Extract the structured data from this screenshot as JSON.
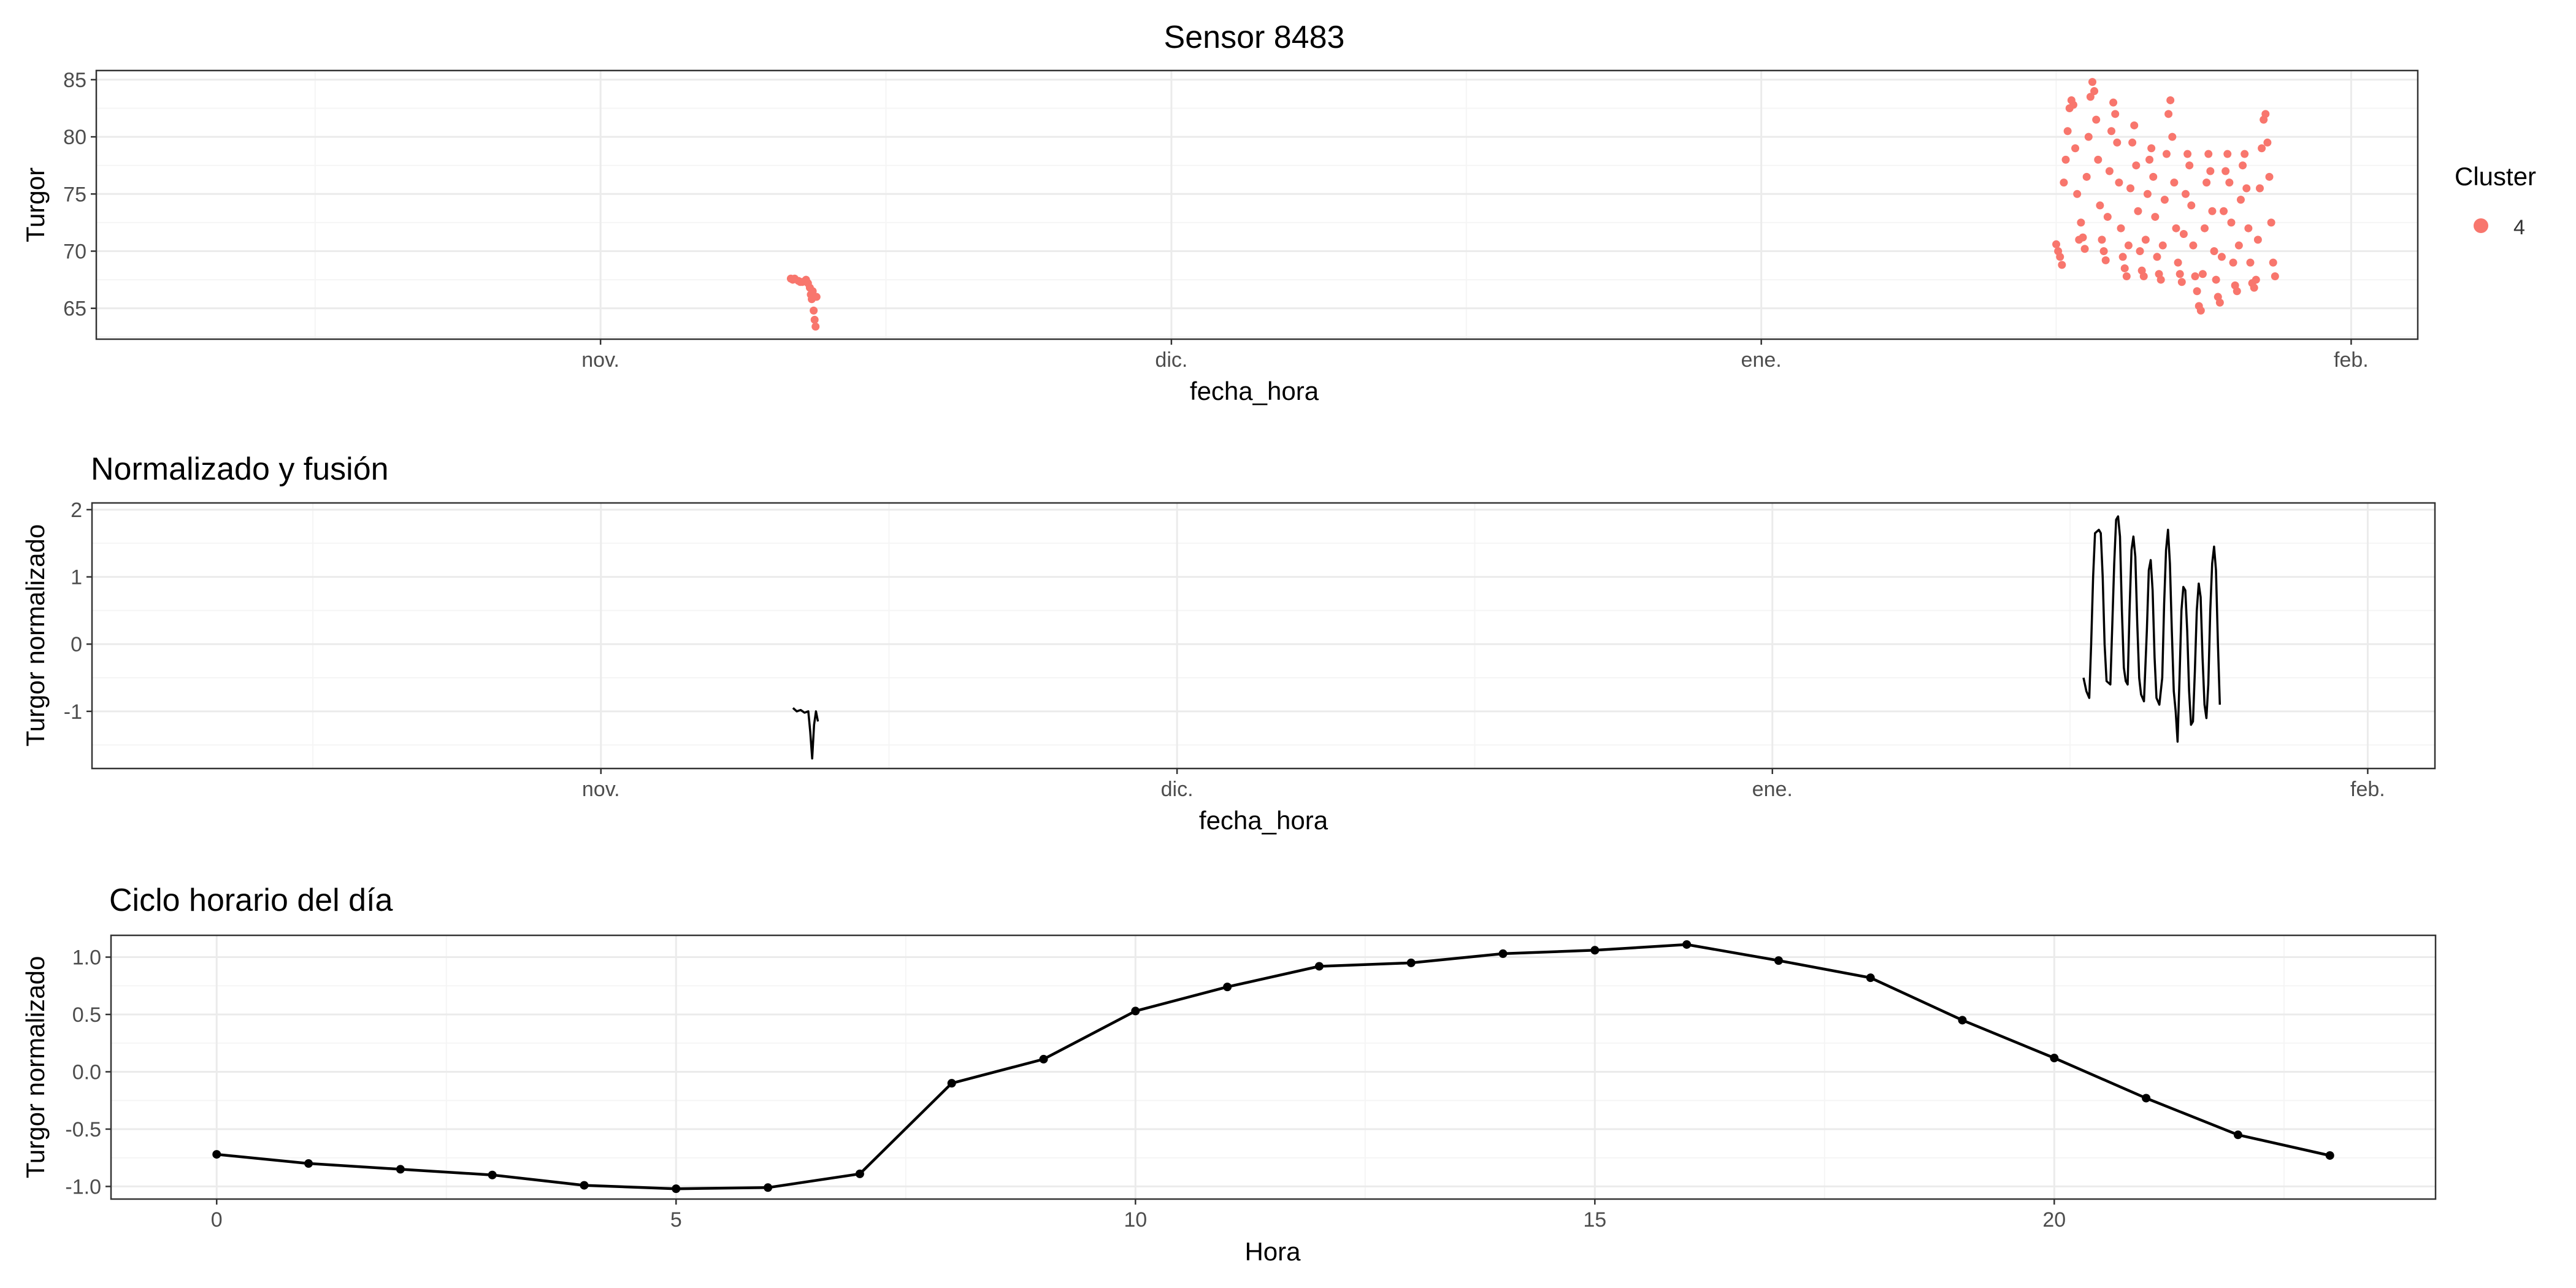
{
  "colors": {
    "cluster4": "#F8766D",
    "line": "#000000",
    "grid_major": "#EBEBEB",
    "grid_minor": "#F5F5F5",
    "panel_border": "#333333"
  },
  "chart_data": [
    {
      "type": "scatter",
      "title": "Sensor 8483",
      "xlabel": "fecha_hora",
      "ylabel": "Turgor",
      "xlim": [
        -26.5,
        95.5
      ],
      "ylim": [
        62.3,
        85.8
      ],
      "x_axis": {
        "unit": "days relative to 2023-11-01",
        "ticks": [
          {
            "label": "nov.",
            "value": 0
          },
          {
            "label": "dic.",
            "value": 30
          },
          {
            "label": "ene.",
            "value": 61
          },
          {
            "label": "feb.",
            "value": 92
          }
        ],
        "minor": [
          -15,
          15,
          45.5,
          76.5
        ]
      },
      "y_ticks": [
        65,
        70,
        75,
        80,
        85
      ],
      "legend": {
        "title": "Cluster",
        "position": "right",
        "entries": [
          {
            "label": "4",
            "color": "#F8766D"
          }
        ]
      },
      "series": [
        {
          "name": "4",
          "color": "#F8766D",
          "points": [
            [
              10.0,
              67.6
            ],
            [
              10.1,
              67.5
            ],
            [
              10.2,
              67.6
            ],
            [
              10.4,
              67.4
            ],
            [
              10.5,
              67.3
            ],
            [
              10.6,
              67.3
            ],
            [
              10.8,
              67.5
            ],
            [
              10.9,
              67.2
            ],
            [
              11.0,
              66.8
            ],
            [
              11.05,
              66.2
            ],
            [
              11.1,
              65.8
            ],
            [
              11.15,
              66.5
            ],
            [
              11.2,
              64.8
            ],
            [
              11.25,
              64.0
            ],
            [
              11.3,
              63.4
            ],
            [
              11.35,
              66.0
            ],
            [
              76.5,
              70.6
            ],
            [
              76.6,
              70.0
            ],
            [
              76.7,
              69.5
            ],
            [
              76.8,
              68.8
            ],
            [
              76.9,
              76.0
            ],
            [
              77.0,
              78.0
            ],
            [
              77.1,
              80.5
            ],
            [
              77.2,
              82.5
            ],
            [
              77.3,
              83.2
            ],
            [
              77.4,
              82.8
            ],
            [
              77.5,
              79.0
            ],
            [
              77.6,
              75.0
            ],
            [
              77.7,
              71.0
            ],
            [
              77.8,
              72.5
            ],
            [
              77.9,
              71.2
            ],
            [
              78.0,
              70.2
            ],
            [
              78.1,
              76.5
            ],
            [
              78.2,
              80.0
            ],
            [
              78.3,
              83.5
            ],
            [
              78.4,
              84.8
            ],
            [
              78.5,
              84.0
            ],
            [
              78.6,
              81.5
            ],
            [
              78.7,
              78.0
            ],
            [
              78.8,
              74.0
            ],
            [
              78.9,
              71.0
            ],
            [
              79.0,
              70.0
            ],
            [
              79.1,
              69.2
            ],
            [
              79.2,
              73.0
            ],
            [
              79.3,
              77.0
            ],
            [
              79.4,
              80.5
            ],
            [
              79.5,
              83.0
            ],
            [
              79.6,
              82.0
            ],
            [
              79.7,
              79.5
            ],
            [
              79.8,
              76.0
            ],
            [
              79.9,
              72.0
            ],
            [
              80.0,
              69.5
            ],
            [
              80.1,
              68.5
            ],
            [
              80.2,
              67.8
            ],
            [
              80.3,
              70.5
            ],
            [
              80.4,
              75.5
            ],
            [
              80.5,
              79.5
            ],
            [
              80.6,
              81.0
            ],
            [
              80.7,
              77.5
            ],
            [
              80.8,
              73.5
            ],
            [
              80.9,
              70.0
            ],
            [
              81.0,
              68.3
            ],
            [
              81.1,
              67.8
            ],
            [
              81.2,
              71.0
            ],
            [
              81.3,
              75.0
            ],
            [
              81.4,
              78.0
            ],
            [
              81.5,
              79.0
            ],
            [
              81.6,
              76.5
            ],
            [
              81.7,
              73.0
            ],
            [
              81.8,
              69.5
            ],
            [
              81.9,
              68.0
            ],
            [
              82.0,
              67.5
            ],
            [
              82.1,
              70.5
            ],
            [
              82.2,
              74.5
            ],
            [
              82.3,
              78.5
            ],
            [
              82.4,
              82.0
            ],
            [
              82.5,
              83.2
            ],
            [
              82.6,
              80.0
            ],
            [
              82.7,
              76.0
            ],
            [
              82.8,
              72.0
            ],
            [
              82.9,
              69.0
            ],
            [
              83.0,
              68.0
            ],
            [
              83.1,
              67.3
            ],
            [
              83.2,
              71.5
            ],
            [
              83.3,
              75.0
            ],
            [
              83.4,
              78.5
            ],
            [
              83.5,
              77.5
            ],
            [
              83.6,
              74.0
            ],
            [
              83.7,
              70.5
            ],
            [
              83.8,
              67.8
            ],
            [
              83.9,
              66.5
            ],
            [
              84.0,
              65.2
            ],
            [
              84.1,
              64.8
            ],
            [
              84.2,
              68.0
            ],
            [
              84.3,
              72.0
            ],
            [
              84.4,
              76.0
            ],
            [
              84.5,
              78.5
            ],
            [
              84.6,
              77.0
            ],
            [
              84.7,
              73.5
            ],
            [
              84.8,
              70.0
            ],
            [
              84.9,
              67.5
            ],
            [
              85.0,
              66.0
            ],
            [
              85.1,
              65.5
            ],
            [
              85.2,
              69.5
            ],
            [
              85.3,
              73.5
            ],
            [
              85.4,
              77.0
            ],
            [
              85.5,
              78.5
            ],
            [
              85.6,
              76.0
            ],
            [
              85.7,
              72.5
            ],
            [
              85.8,
              69.0
            ],
            [
              85.9,
              67.0
            ],
            [
              86.0,
              66.5
            ],
            [
              86.1,
              70.5
            ],
            [
              86.2,
              74.5
            ],
            [
              86.3,
              77.5
            ],
            [
              86.4,
              78.5
            ],
            [
              86.5,
              75.5
            ],
            [
              86.6,
              72.0
            ],
            [
              86.7,
              69.0
            ],
            [
              86.8,
              67.2
            ],
            [
              86.9,
              66.8
            ],
            [
              87.0,
              67.5
            ],
            [
              87.1,
              71.0
            ],
            [
              87.2,
              75.5
            ],
            [
              87.3,
              79.0
            ],
            [
              87.4,
              81.5
            ],
            [
              87.5,
              82.0
            ],
            [
              87.6,
              79.5
            ],
            [
              87.7,
              76.5
            ],
            [
              87.8,
              72.5
            ],
            [
              87.9,
              69.0
            ],
            [
              88.0,
              67.8
            ]
          ]
        }
      ]
    },
    {
      "type": "line",
      "title": "Normalizado y fusión",
      "xlabel": "fecha_hora",
      "ylabel": "Turgor normalizado",
      "xlim": [
        -26.5,
        95.5
      ],
      "ylim": [
        -1.85,
        2.1
      ],
      "x_axis": {
        "unit": "days relative to 2023-11-01",
        "ticks": [
          {
            "label": "nov.",
            "value": 0
          },
          {
            "label": "dic.",
            "value": 30
          },
          {
            "label": "ene.",
            "value": 61
          },
          {
            "label": "feb.",
            "value": 92
          }
        ],
        "minor": [
          -15,
          15,
          45.5,
          76.5
        ]
      },
      "y_ticks": [
        -1,
        0,
        1,
        2
      ],
      "series": [
        {
          "segments": [
            [
              [
                10.0,
                -0.95
              ],
              [
                10.2,
                -1.0
              ],
              [
                10.4,
                -0.98
              ],
              [
                10.6,
                -1.02
              ],
              [
                10.8,
                -1.0
              ],
              [
                10.9,
                -1.3
              ],
              [
                11.0,
                -1.7
              ],
              [
                11.1,
                -1.2
              ],
              [
                11.2,
                -1.0
              ],
              [
                11.3,
                -1.15
              ]
            ],
            [
              [
                77.2,
                -0.5
              ],
              [
                77.35,
                -0.7
              ],
              [
                77.5,
                -0.8
              ],
              [
                77.6,
                0.0
              ],
              [
                77.7,
                1.0
              ],
              [
                77.8,
                1.65
              ],
              [
                78.0,
                1.7
              ],
              [
                78.1,
                1.65
              ],
              [
                78.2,
                1.0
              ],
              [
                78.3,
                0.0
              ],
              [
                78.4,
                -0.55
              ],
              [
                78.6,
                -0.6
              ],
              [
                78.7,
                0.3
              ],
              [
                78.8,
                1.2
              ],
              [
                78.9,
                1.85
              ],
              [
                79.0,
                1.9
              ],
              [
                79.1,
                1.6
              ],
              [
                79.2,
                0.5
              ],
              [
                79.3,
                -0.35
              ],
              [
                79.4,
                -0.55
              ],
              [
                79.5,
                -0.6
              ],
              [
                79.6,
                0.5
              ],
              [
                79.7,
                1.4
              ],
              [
                79.8,
                1.6
              ],
              [
                79.9,
                1.3
              ],
              [
                80.0,
                0.3
              ],
              [
                80.1,
                -0.5
              ],
              [
                80.2,
                -0.75
              ],
              [
                80.35,
                -0.85
              ],
              [
                80.5,
                0.2
              ],
              [
                80.6,
                1.1
              ],
              [
                80.7,
                1.25
              ],
              [
                80.8,
                0.8
              ],
              [
                80.9,
                -0.2
              ],
              [
                81.0,
                -0.8
              ],
              [
                81.15,
                -0.9
              ],
              [
                81.3,
                -0.5
              ],
              [
                81.4,
                0.6
              ],
              [
                81.5,
                1.4
              ],
              [
                81.6,
                1.7
              ],
              [
                81.7,
                1.2
              ],
              [
                81.8,
                0.2
              ],
              [
                81.9,
                -0.7
              ],
              [
                82.0,
                -1.0
              ],
              [
                82.1,
                -1.45
              ],
              [
                82.2,
                -0.5
              ],
              [
                82.3,
                0.5
              ],
              [
                82.4,
                0.85
              ],
              [
                82.5,
                0.8
              ],
              [
                82.6,
                0.2
              ],
              [
                82.7,
                -0.7
              ],
              [
                82.8,
                -1.2
              ],
              [
                82.9,
                -1.15
              ],
              [
                83.0,
                -0.4
              ],
              [
                83.1,
                0.5
              ],
              [
                83.2,
                0.9
              ],
              [
                83.3,
                0.7
              ],
              [
                83.4,
                -0.2
              ],
              [
                83.5,
                -0.9
              ],
              [
                83.6,
                -1.1
              ],
              [
                83.7,
                -0.6
              ],
              [
                83.8,
                0.5
              ],
              [
                83.9,
                1.2
              ],
              [
                84.0,
                1.45
              ],
              [
                84.1,
                1.1
              ],
              [
                84.2,
                0.0
              ],
              [
                84.3,
                -0.9
              ]
            ]
          ]
        }
      ]
    },
    {
      "type": "line",
      "title": "Ciclo horario del día",
      "xlabel": "Hora",
      "ylabel": "Turgor normalizado",
      "xlim": [
        -1.15,
        24.15
      ],
      "ylim": [
        -1.11,
        1.19
      ],
      "x_ticks": [
        0,
        5,
        10,
        15,
        20
      ],
      "x_minor": [
        2.5,
        7.5,
        12.5,
        17.5,
        22.5
      ],
      "y_ticks": [
        -1.0,
        -0.5,
        0.0,
        0.5,
        1.0
      ],
      "y_tick_labels": [
        "-1.0",
        "-0.5",
        "0.0",
        "0.5",
        "1.0"
      ],
      "x": [
        0,
        1,
        2,
        3,
        4,
        5,
        6,
        7,
        8,
        9,
        10,
        11,
        12,
        13,
        14,
        15,
        16,
        17,
        18,
        19,
        20,
        21,
        22,
        23
      ],
      "values": [
        -0.72,
        -0.8,
        -0.85,
        -0.9,
        -0.99,
        -1.02,
        -1.01,
        -0.89,
        -0.1,
        0.11,
        0.53,
        0.74,
        0.92,
        0.95,
        1.03,
        1.06,
        1.11,
        0.97,
        0.82,
        0.45,
        0.12,
        -0.23,
        -0.55,
        -0.73
      ]
    }
  ]
}
